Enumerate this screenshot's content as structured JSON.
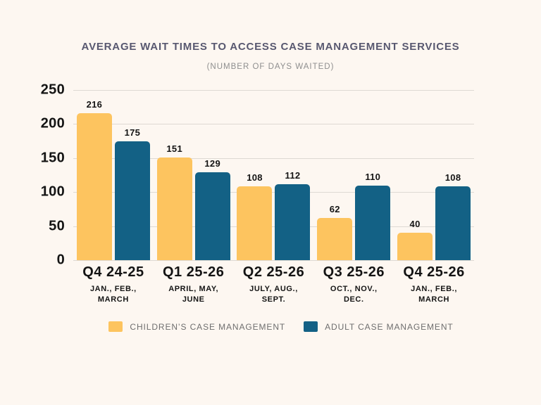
{
  "chart_data": {
    "type": "bar",
    "title": "AVERAGE WAIT TIMES TO ACCESS CASE MANAGEMENT SERVICES",
    "subtitle": "(NUMBER OF DAYS WAITED)",
    "categories": [
      {
        "quarter": "Q4 24-25",
        "months": "JAN., FEB.,\nMARCH"
      },
      {
        "quarter": "Q1 25-26",
        "months": "APRIL, MAY,\nJUNE"
      },
      {
        "quarter": "Q2 25-26",
        "months": "JULY, AUG.,\nSEPT."
      },
      {
        "quarter": "Q3 25-26",
        "months": "OCT., NOV.,\nDEC."
      },
      {
        "quarter": "Q4 25-26",
        "months": "JAN., FEB.,\nMARCH"
      }
    ],
    "series": [
      {
        "name": "CHILDREN’S CASE MANAGEMENT",
        "color": "#FDC45F",
        "values": [
          216,
          151,
          108,
          62,
          40
        ]
      },
      {
        "name": "ADULT CASE MANAGEMENT",
        "color": "#136185",
        "values": [
          175,
          129,
          112,
          110,
          108
        ]
      }
    ],
    "y_axis": {
      "min": 0,
      "max": 250,
      "tick_step": 50,
      "ticks": [
        0,
        50,
        100,
        150,
        200,
        250
      ]
    },
    "grid": true,
    "legend_position": "bottom",
    "colors": {
      "background": "#FDF7F1",
      "title": "#585870",
      "subtitle": "#8E8E8E",
      "axis_text": "#141414",
      "value_text": "#141414",
      "gridline": "#DED9D3",
      "legend_text": "#6E6E6E"
    }
  }
}
